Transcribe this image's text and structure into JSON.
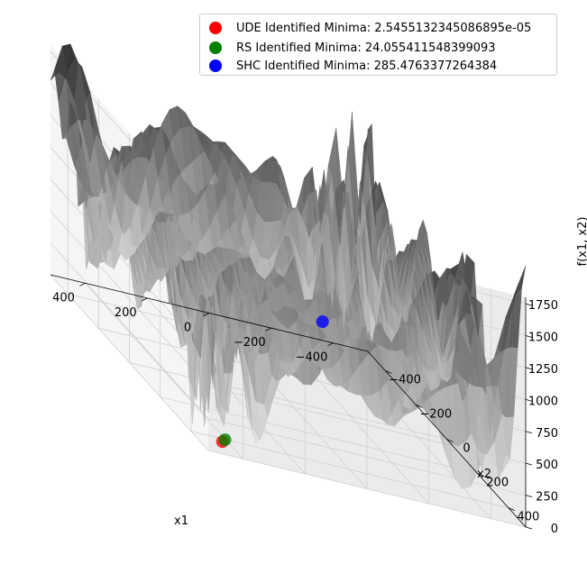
{
  "chart_data": {
    "type": "surface3d",
    "surface_colormap": "gray",
    "xlabel": "x1",
    "ylabel": "x2",
    "zlabel": "f(x1, x2)",
    "xlim": [
      -512,
      512
    ],
    "ylim": [
      -512,
      512
    ],
    "zlim": [
      0,
      1800
    ],
    "x_ticks": [
      -400,
      -200,
      0,
      200,
      400
    ],
    "y_ticks": [
      -400,
      -200,
      0,
      200,
      400
    ],
    "z_ticks": [
      0,
      250,
      500,
      750,
      1000,
      1250,
      1500,
      1750
    ],
    "legend_placement": "top-right",
    "grid": true,
    "series": [
      {
        "name": "UDE Identified Minima: 2.5455132345086895e-05",
        "color": "#ff0000",
        "x": 420.97,
        "y": 420.97,
        "z": 2.54551e-05
      },
      {
        "name": "RS Identified Minima: 24.055411548399093",
        "color": "#008000",
        "x": 415,
        "y": 425,
        "z": 24.06
      },
      {
        "name": "SHC Identified Minima: 285.4763377264384",
        "color": "#0000ff",
        "x": -300,
        "y": -380,
        "z": 285.48
      }
    ]
  }
}
